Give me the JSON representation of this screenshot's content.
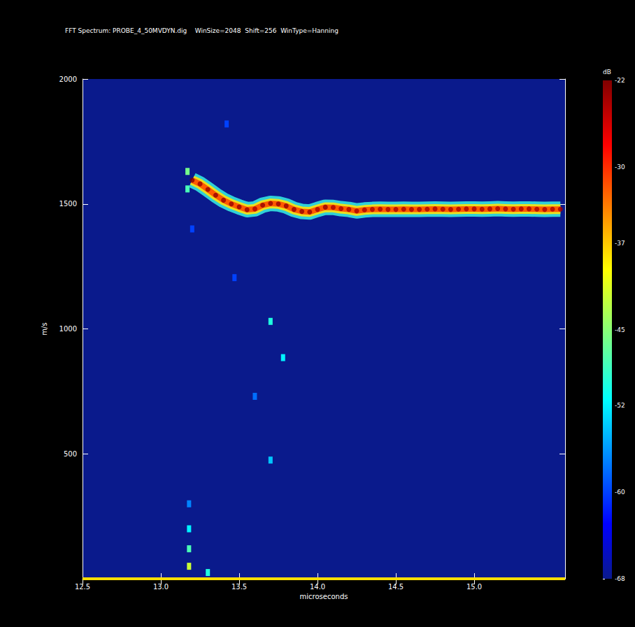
{
  "chart_data": {
    "type": "heatmap",
    "title": "FFT Spectrum: PROBE_4_50MVDYN.dig    WinSize=2048  Shift=256  WinType=Hanning",
    "x_label": "microseconds",
    "y_label": "m/s",
    "xlim": [
      12.5,
      15.58
    ],
    "xticks": [
      12.5,
      {
        "value": 13,
        "label": "13.0"
      },
      13.5,
      {
        "value": 14,
        "label": "14.0"
      },
      14.5,
      {
        "value": 15,
        "label": "15.0"
      }
    ],
    "ylim": [
      0,
      2000
    ],
    "yticks": [
      500,
      1000,
      1500,
      2000
    ],
    "grid": false,
    "cells": [
      [
        13.2,
        1595,
        -22
      ],
      [
        13.25,
        1580,
        -23
      ],
      [
        13.3,
        1558,
        -23
      ],
      [
        13.35,
        1535,
        -23
      ],
      [
        13.4,
        1515,
        -23
      ],
      [
        13.45,
        1500,
        -23
      ],
      [
        13.5,
        1488,
        -23
      ],
      [
        13.55,
        1477,
        -23
      ],
      [
        13.6,
        1480,
        -24
      ],
      [
        13.65,
        1495,
        -23
      ],
      [
        13.7,
        1502,
        -23
      ],
      [
        13.75,
        1500,
        -23
      ],
      [
        13.8,
        1492,
        -23
      ],
      [
        13.85,
        1478,
        -23
      ],
      [
        13.9,
        1470,
        -23
      ],
      [
        13.95,
        1468,
        -23
      ],
      [
        14.0,
        1478,
        -24
      ],
      [
        14.05,
        1487,
        -23
      ],
      [
        14.1,
        1486,
        -24
      ],
      [
        14.15,
        1481,
        -24
      ],
      [
        14.2,
        1478,
        -24
      ],
      [
        14.25,
        1472,
        -24
      ],
      [
        14.3,
        1476,
        -24
      ],
      [
        14.35,
        1478,
        -24
      ],
      [
        14.4,
        1479,
        -24
      ],
      [
        14.45,
        1478,
        -24
      ],
      [
        14.5,
        1478,
        -24
      ],
      [
        14.55,
        1479,
        -24
      ],
      [
        14.6,
        1478,
        -24
      ],
      [
        14.65,
        1478,
        -24
      ],
      [
        14.7,
        1479,
        -24
      ],
      [
        14.75,
        1480,
        -24
      ],
      [
        14.8,
        1479,
        -24
      ],
      [
        14.85,
        1478,
        -24
      ],
      [
        14.9,
        1479,
        -24
      ],
      [
        14.95,
        1480,
        -24
      ],
      [
        15.0,
        1480,
        -24
      ],
      [
        15.05,
        1479,
        -24
      ],
      [
        15.1,
        1480,
        -24
      ],
      [
        15.15,
        1481,
        -24
      ],
      [
        15.2,
        1480,
        -24
      ],
      [
        15.25,
        1479,
        -24
      ],
      [
        15.3,
        1480,
        -24
      ],
      [
        15.35,
        1480,
        -24
      ],
      [
        15.4,
        1479,
        -24
      ],
      [
        15.45,
        1478,
        -24
      ],
      [
        15.5,
        1479,
        -24
      ],
      [
        15.55,
        1479,
        -24
      ]
    ],
    "spots": [
      [
        13.17,
        1630,
        -46
      ],
      [
        13.17,
        1560,
        -48
      ],
      [
        13.42,
        1820,
        -60
      ],
      [
        13.47,
        1205,
        -60
      ],
      [
        13.2,
        1400,
        -60
      ],
      [
        13.7,
        1030,
        -50
      ],
      [
        13.78,
        885,
        -52
      ],
      [
        13.6,
        730,
        -58
      ],
      [
        13.7,
        475,
        -54
      ],
      [
        13.18,
        300,
        -57
      ],
      [
        13.18,
        200,
        -52
      ],
      [
        13.18,
        120,
        -48
      ],
      [
        13.18,
        50,
        -42
      ],
      [
        13.3,
        25,
        -50
      ]
    ],
    "baseline": {
      "x": [
        12.5,
        15.58
      ],
      "y": 0,
      "dB": -38
    },
    "colorbar": {
      "label": "dB",
      "range": [
        -68,
        -22
      ],
      "ticks": [
        -22,
        -30,
        -37,
        -45,
        -52,
        -60,
        -68
      ]
    }
  }
}
